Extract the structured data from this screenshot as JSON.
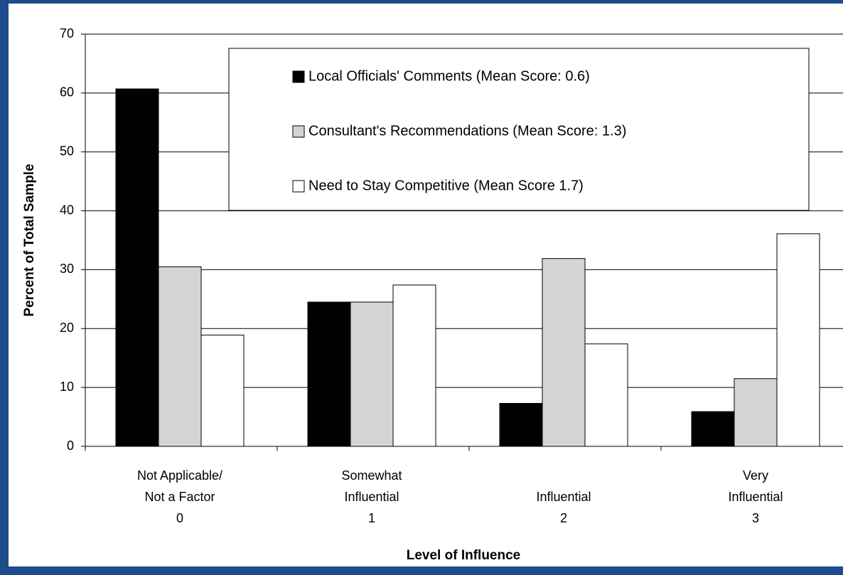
{
  "chart_data": {
    "type": "bar",
    "xlabel": "Level of Influence",
    "ylabel": "Percent of Total Sample",
    "categories": [
      [
        "Not Applicable/",
        "Not a Factor",
        "0"
      ],
      [
        "Somewhat",
        "Influential",
        "1"
      ],
      [
        "Influential",
        "2"
      ],
      [
        "Very",
        "Influential",
        "3"
      ]
    ],
    "series": [
      {
        "name": "Local Officials' Comments (Mean Score: 0.6)",
        "color": "#000000",
        "values": [
          60.7,
          24.5,
          7.3,
          5.9
        ]
      },
      {
        "name": "Consultant's Recommendations (Mean Score: 1.3)",
        "color": "#d4d4d4",
        "values": [
          30.5,
          24.5,
          31.9,
          11.5
        ]
      },
      {
        "name": "Need to Stay Competitive (Mean Score 1.7)",
        "color": "#ffffff",
        "values": [
          18.9,
          27.4,
          17.4,
          36.1
        ]
      }
    ],
    "ylim": [
      0,
      70
    ],
    "yticks": [
      0,
      10,
      20,
      30,
      40,
      50,
      60,
      70
    ],
    "grid": true
  }
}
